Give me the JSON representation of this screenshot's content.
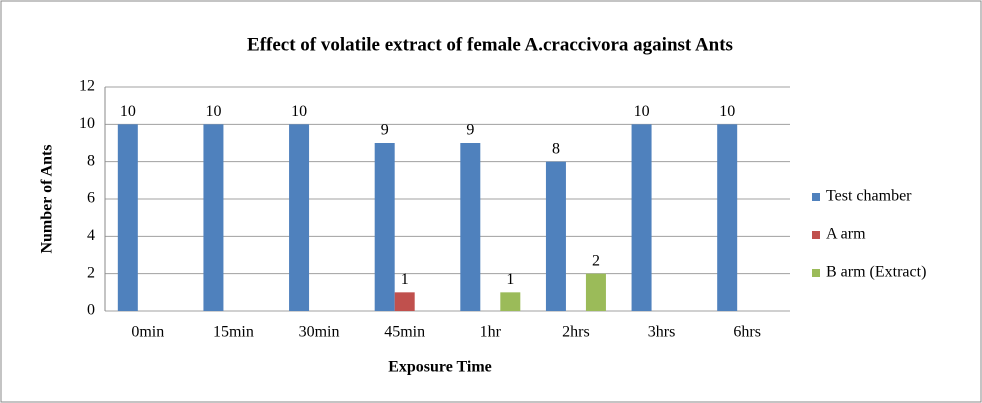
{
  "chart_data": {
    "type": "bar",
    "title": "Effect of volatile extract of female A.craccivora against Ants",
    "x_label": "Exposure Time",
    "y_label": "Number of Ants",
    "categories": [
      "0min",
      "15min",
      "30min",
      "45min",
      "1hr",
      "2hrs",
      "3hrs",
      "6hrs"
    ],
    "series": [
      {
        "name": "Test chamber",
        "color": "#4f81bd",
        "values": [
          10,
          10,
          10,
          9,
          9,
          8,
          10,
          10
        ]
      },
      {
        "name": "A arm",
        "color": "#c0504d",
        "values": [
          null,
          null,
          null,
          1,
          null,
          null,
          null,
          null
        ]
      },
      {
        "name": "B arm (Extract)",
        "color": "#9bbb59",
        "values": [
          null,
          null,
          null,
          null,
          1,
          2,
          null,
          null
        ]
      }
    ],
    "ylim": [
      0,
      12
    ],
    "yticks": [
      0,
      2,
      4,
      6,
      8,
      10,
      12
    ],
    "grid": true,
    "legend": "right"
  }
}
